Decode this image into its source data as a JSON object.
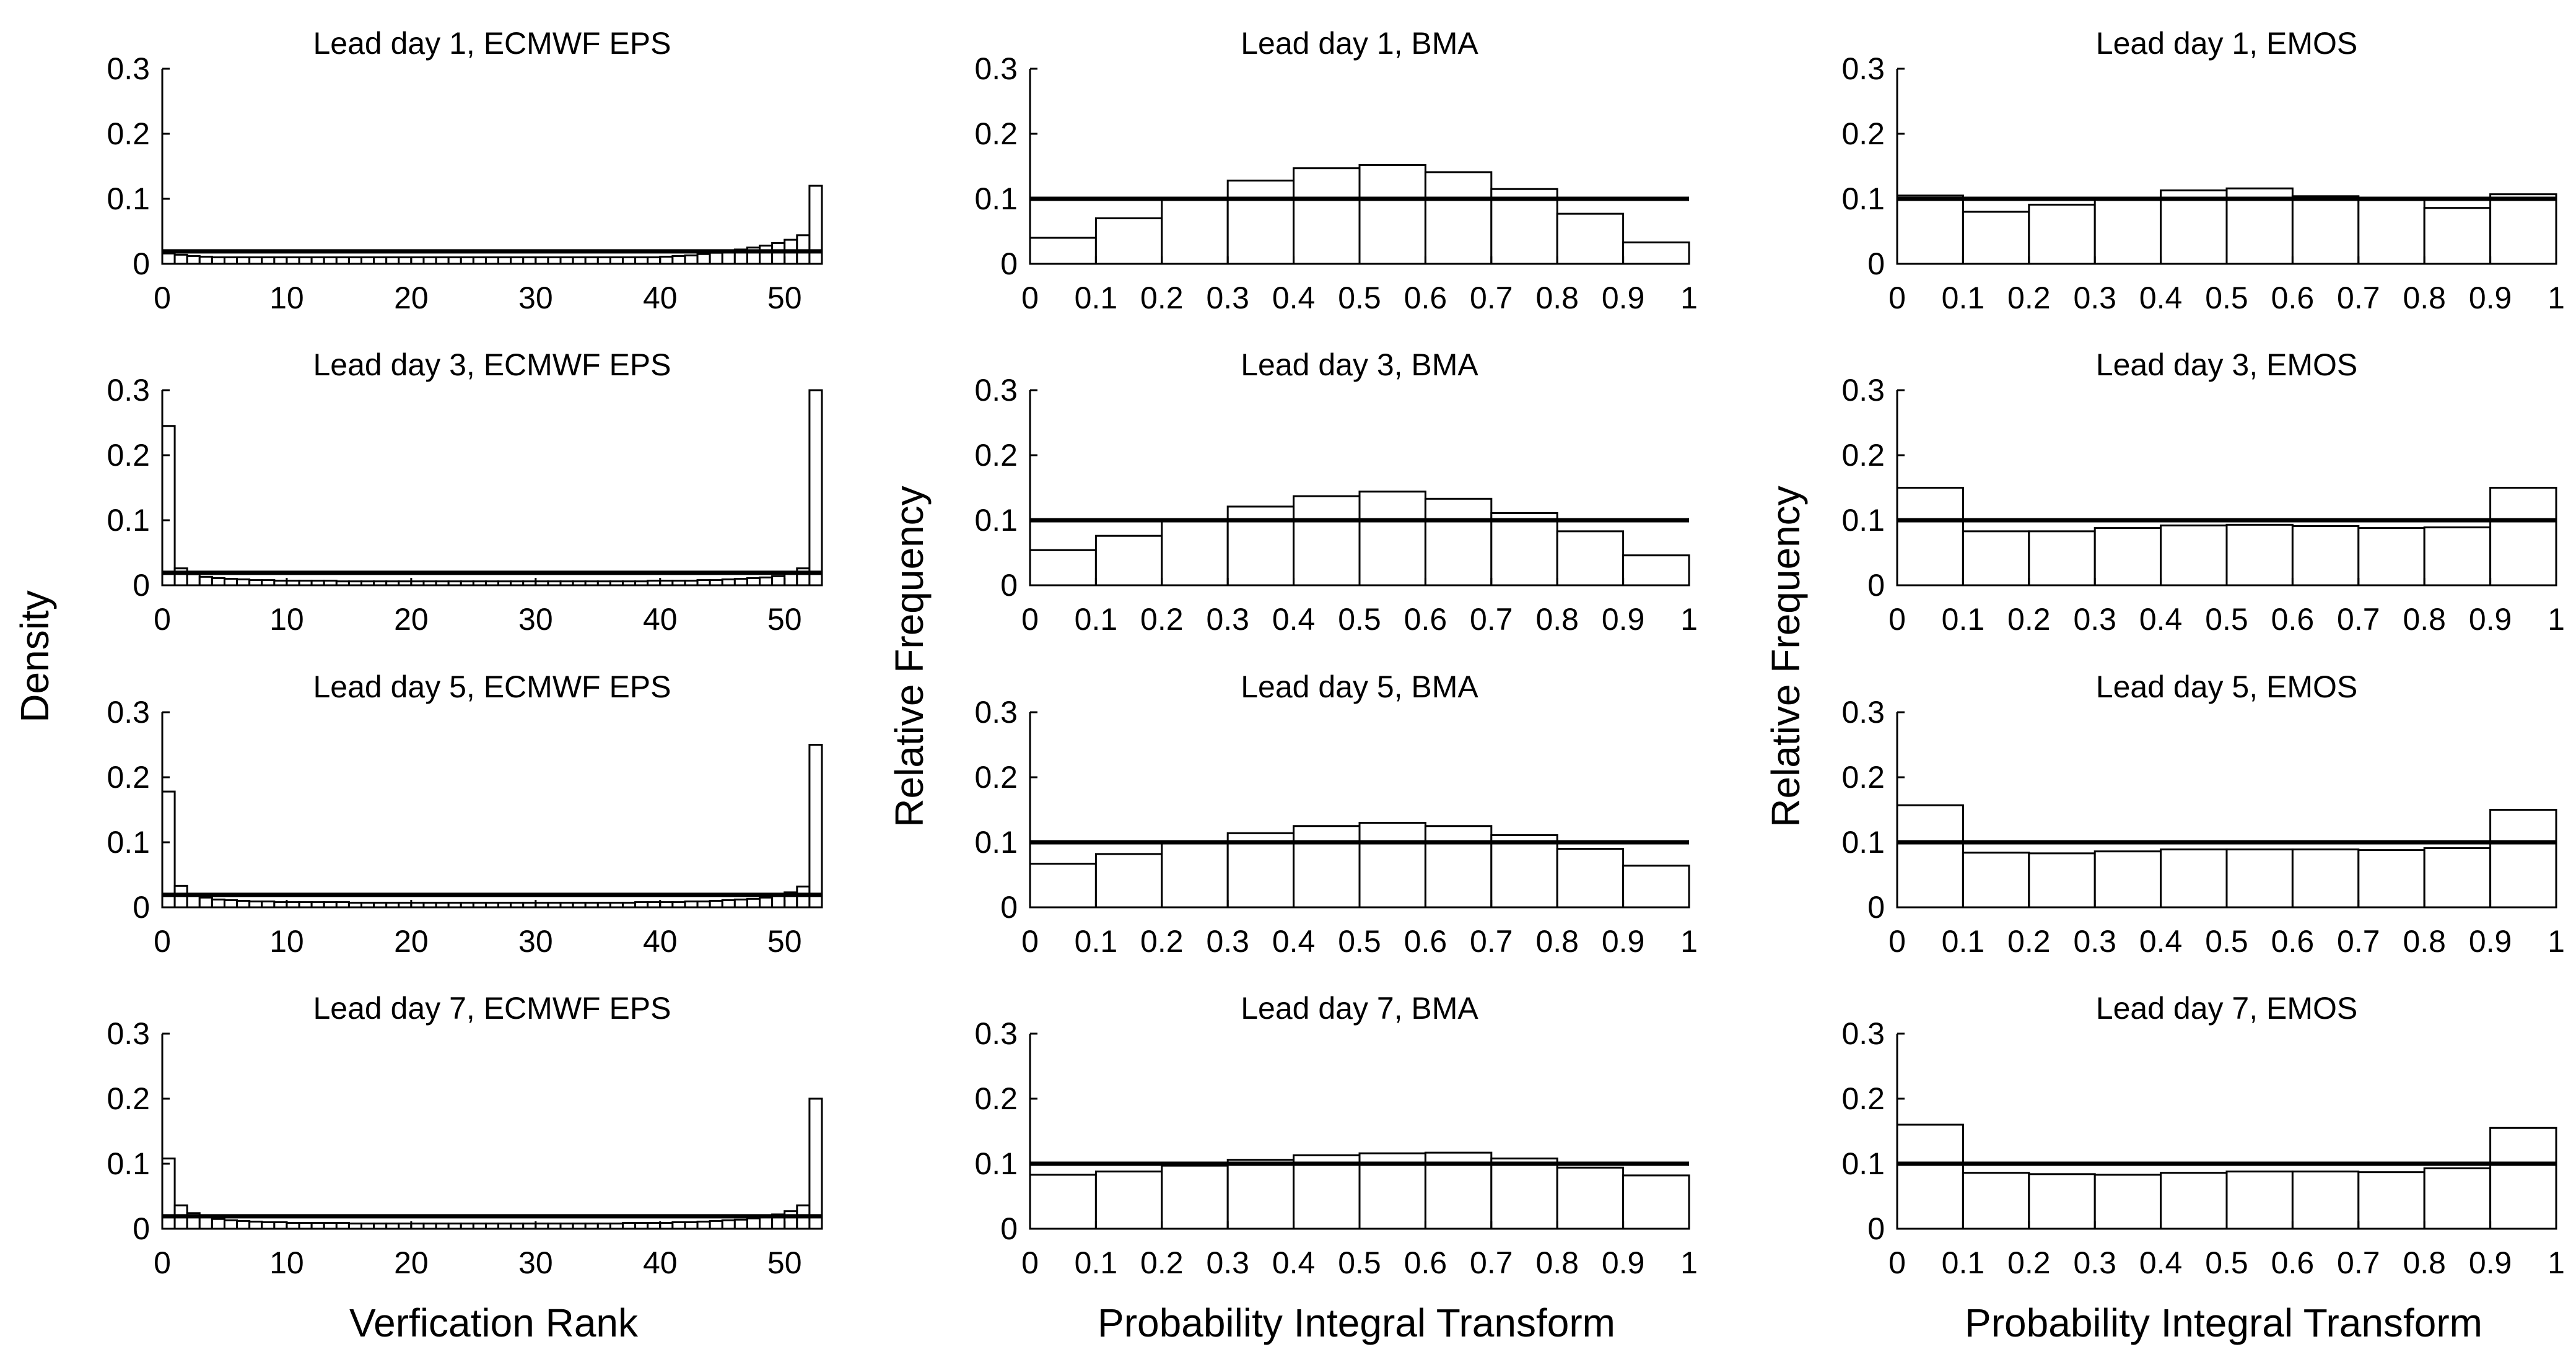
{
  "figure": {
    "density_label": "Density",
    "relfreq_label": "Relative Frequency",
    "xlabel_rank": "Verfication Rank",
    "xlabel_pit": "Probability Integral Transform"
  },
  "chart_data": [
    {
      "type": "bar",
      "method": "ECMWF EPS",
      "title": "Lead day 1, ECMWF EPS",
      "xlabel": "",
      "ylabel": "",
      "xlim": [
        0,
        53
      ],
      "ylim": [
        0,
        0.3
      ],
      "xticks": [
        "0",
        "10",
        "20",
        "30",
        "40",
        "50"
      ],
      "yticks": [
        "0",
        "0.1",
        "0.2",
        "0.3"
      ],
      "reference": 0.0192,
      "values": [
        0.016,
        0.014,
        0.012,
        0.011,
        0.01,
        0.01,
        0.01,
        0.01,
        0.01,
        0.01,
        0.01,
        0.01,
        0.01,
        0.01,
        0.01,
        0.01,
        0.01,
        0.01,
        0.01,
        0.01,
        0.01,
        0.01,
        0.01,
        0.01,
        0.01,
        0.01,
        0.01,
        0.01,
        0.01,
        0.01,
        0.01,
        0.01,
        0.01,
        0.01,
        0.01,
        0.01,
        0.01,
        0.01,
        0.01,
        0.01,
        0.011,
        0.012,
        0.013,
        0.015,
        0.017,
        0.019,
        0.022,
        0.025,
        0.028,
        0.032,
        0.037,
        0.044,
        0.12
      ]
    },
    {
      "type": "bar",
      "method": "BMA",
      "title": "Lead day 1, BMA",
      "xlabel": "",
      "ylabel": "",
      "xlim": [
        0,
        1
      ],
      "ylim": [
        0,
        0.3
      ],
      "xticks": [
        "0",
        "0.1",
        "0.2",
        "0.3",
        "0.4",
        "0.5",
        "0.6",
        "0.7",
        "0.8",
        "0.9",
        "1"
      ],
      "yticks": [
        "0",
        "0.1",
        "0.2",
        "0.3"
      ],
      "reference": 0.1,
      "values": [
        0.04,
        0.07,
        0.1,
        0.128,
        0.147,
        0.152,
        0.141,
        0.115,
        0.077,
        0.033
      ]
    },
    {
      "type": "bar",
      "method": "EMOS",
      "title": "Lead day 1, EMOS",
      "xlabel": "",
      "ylabel": "",
      "xlim": [
        0,
        1
      ],
      "ylim": [
        0,
        0.3
      ],
      "xticks": [
        "0",
        "0.1",
        "0.2",
        "0.3",
        "0.4",
        "0.5",
        "0.6",
        "0.7",
        "0.8",
        "0.9",
        "1"
      ],
      "yticks": [
        "0",
        "0.1",
        "0.2",
        "0.3"
      ],
      "reference": 0.1,
      "values": [
        0.105,
        0.08,
        0.091,
        0.1,
        0.113,
        0.116,
        0.104,
        0.098,
        0.086,
        0.107
      ]
    },
    {
      "type": "bar",
      "method": "ECMWF EPS",
      "title": "Lead day 3, ECMWF EPS",
      "xlabel": "",
      "ylabel": "",
      "xlim": [
        0,
        53
      ],
      "ylim": [
        0,
        0.3
      ],
      "xticks": [
        "0",
        "10",
        "20",
        "30",
        "40",
        "50"
      ],
      "yticks": [
        "0",
        "0.1",
        "0.2",
        "0.3"
      ],
      "reference": 0.0192,
      "values": [
        0.245,
        0.026,
        0.017,
        0.013,
        0.011,
        0.01,
        0.009,
        0.008,
        0.008,
        0.007,
        0.007,
        0.007,
        0.007,
        0.007,
        0.006,
        0.006,
        0.006,
        0.006,
        0.006,
        0.006,
        0.006,
        0.006,
        0.006,
        0.006,
        0.006,
        0.006,
        0.006,
        0.006,
        0.006,
        0.006,
        0.006,
        0.006,
        0.006,
        0.006,
        0.006,
        0.006,
        0.006,
        0.006,
        0.006,
        0.007,
        0.007,
        0.007,
        0.007,
        0.008,
        0.008,
        0.009,
        0.01,
        0.011,
        0.012,
        0.014,
        0.018,
        0.026,
        0.3
      ]
    },
    {
      "type": "bar",
      "method": "BMA",
      "title": "Lead day 3, BMA",
      "xlabel": "",
      "ylabel": "Relative Frequency",
      "xlim": [
        0,
        1
      ],
      "ylim": [
        0,
        0.3
      ],
      "xticks": [
        "0",
        "0.1",
        "0.2",
        "0.3",
        "0.4",
        "0.5",
        "0.6",
        "0.7",
        "0.8",
        "0.9",
        "1"
      ],
      "yticks": [
        "0",
        "0.1",
        "0.2",
        "0.3"
      ],
      "reference": 0.1,
      "values": [
        0.054,
        0.076,
        0.1,
        0.121,
        0.137,
        0.144,
        0.133,
        0.111,
        0.083,
        0.046
      ]
    },
    {
      "type": "bar",
      "method": "EMOS",
      "title": "Lead day 3, EMOS",
      "xlabel": "",
      "ylabel": "Relative Frequency",
      "xlim": [
        0,
        1
      ],
      "ylim": [
        0,
        0.3
      ],
      "xticks": [
        "0",
        "0.1",
        "0.2",
        "0.3",
        "0.4",
        "0.5",
        "0.6",
        "0.7",
        "0.8",
        "0.9",
        "1"
      ],
      "yticks": [
        "0",
        "0.1",
        "0.2",
        "0.3"
      ],
      "reference": 0.1,
      "values": [
        0.15,
        0.083,
        0.083,
        0.088,
        0.092,
        0.093,
        0.091,
        0.088,
        0.089,
        0.15
      ]
    },
    {
      "type": "bar",
      "method": "ECMWF EPS",
      "title": "Lead day 5, ECMWF EPS",
      "xlabel": "",
      "ylabel": "",
      "xlim": [
        0,
        53
      ],
      "ylim": [
        0,
        0.3
      ],
      "xticks": [
        "0",
        "10",
        "20",
        "30",
        "40",
        "50"
      ],
      "yticks": [
        "0",
        "0.1",
        "0.2",
        "0.3"
      ],
      "reference": 0.0192,
      "values": [
        0.178,
        0.033,
        0.02,
        0.015,
        0.012,
        0.011,
        0.01,
        0.009,
        0.009,
        0.008,
        0.008,
        0.008,
        0.008,
        0.008,
        0.008,
        0.007,
        0.007,
        0.007,
        0.007,
        0.007,
        0.007,
        0.007,
        0.007,
        0.007,
        0.007,
        0.007,
        0.007,
        0.007,
        0.007,
        0.007,
        0.007,
        0.007,
        0.007,
        0.007,
        0.007,
        0.007,
        0.007,
        0.007,
        0.008,
        0.008,
        0.008,
        0.008,
        0.009,
        0.009,
        0.01,
        0.011,
        0.012,
        0.013,
        0.015,
        0.018,
        0.023,
        0.032,
        0.25
      ]
    },
    {
      "type": "bar",
      "method": "BMA",
      "title": "Lead day 5, BMA",
      "xlabel": "",
      "ylabel": "",
      "xlim": [
        0,
        1
      ],
      "ylim": [
        0,
        0.3
      ],
      "xticks": [
        "0",
        "0.1",
        "0.2",
        "0.3",
        "0.4",
        "0.5",
        "0.6",
        "0.7",
        "0.8",
        "0.9",
        "1"
      ],
      "yticks": [
        "0",
        "0.1",
        "0.2",
        "0.3"
      ],
      "reference": 0.1,
      "values": [
        0.067,
        0.082,
        0.1,
        0.114,
        0.125,
        0.13,
        0.125,
        0.111,
        0.09,
        0.064
      ]
    },
    {
      "type": "bar",
      "method": "EMOS",
      "title": "Lead day 5, EMOS",
      "xlabel": "",
      "ylabel": "",
      "xlim": [
        0,
        1
      ],
      "ylim": [
        0,
        0.3
      ],
      "xticks": [
        "0",
        "0.1",
        "0.2",
        "0.3",
        "0.4",
        "0.5",
        "0.6",
        "0.7",
        "0.8",
        "0.9",
        "1"
      ],
      "yticks": [
        "0",
        "0.1",
        "0.2",
        "0.3"
      ],
      "reference": 0.1,
      "values": [
        0.157,
        0.084,
        0.083,
        0.086,
        0.089,
        0.089,
        0.089,
        0.088,
        0.091,
        0.15
      ]
    },
    {
      "type": "bar",
      "method": "ECMWF EPS",
      "title": "Lead day 7, ECMWF EPS",
      "xlabel": "Verfication Rank",
      "ylabel": "",
      "xlim": [
        0,
        53
      ],
      "ylim": [
        0,
        0.3
      ],
      "xticks": [
        "0",
        "10",
        "20",
        "30",
        "40",
        "50"
      ],
      "yticks": [
        "0",
        "0.1",
        "0.2",
        "0.3"
      ],
      "reference": 0.0192,
      "values": [
        0.108,
        0.036,
        0.024,
        0.018,
        0.015,
        0.013,
        0.012,
        0.011,
        0.01,
        0.01,
        0.009,
        0.009,
        0.009,
        0.009,
        0.009,
        0.008,
        0.008,
        0.008,
        0.008,
        0.008,
        0.008,
        0.008,
        0.008,
        0.008,
        0.008,
        0.008,
        0.008,
        0.008,
        0.008,
        0.008,
        0.008,
        0.008,
        0.008,
        0.008,
        0.008,
        0.008,
        0.008,
        0.009,
        0.009,
        0.009,
        0.009,
        0.01,
        0.01,
        0.011,
        0.012,
        0.013,
        0.014,
        0.016,
        0.018,
        0.022,
        0.027,
        0.036,
        0.2
      ]
    },
    {
      "type": "bar",
      "method": "BMA",
      "title": "Lead day 7, BMA",
      "xlabel": "Probability Integral Transform",
      "ylabel": "",
      "xlim": [
        0,
        1
      ],
      "ylim": [
        0,
        0.3
      ],
      "xticks": [
        "0",
        "0.1",
        "0.2",
        "0.3",
        "0.4",
        "0.5",
        "0.6",
        "0.7",
        "0.8",
        "0.9",
        "1"
      ],
      "yticks": [
        "0",
        "0.1",
        "0.2",
        "0.3"
      ],
      "reference": 0.1,
      "values": [
        0.083,
        0.088,
        0.097,
        0.106,
        0.113,
        0.116,
        0.117,
        0.108,
        0.094,
        0.082
      ]
    },
    {
      "type": "bar",
      "method": "EMOS",
      "title": "Lead day 7, EMOS",
      "xlabel": "Probability Integral Transform",
      "ylabel": "",
      "xlim": [
        0,
        1
      ],
      "ylim": [
        0,
        0.3
      ],
      "xticks": [
        "0",
        "0.1",
        "0.2",
        "0.3",
        "0.4",
        "0.5",
        "0.6",
        "0.7",
        "0.8",
        "0.9",
        "1"
      ],
      "yticks": [
        "0",
        "0.1",
        "0.2",
        "0.3"
      ],
      "reference": 0.1,
      "values": [
        0.16,
        0.086,
        0.084,
        0.083,
        0.086,
        0.088,
        0.088,
        0.087,
        0.093,
        0.155
      ]
    }
  ]
}
